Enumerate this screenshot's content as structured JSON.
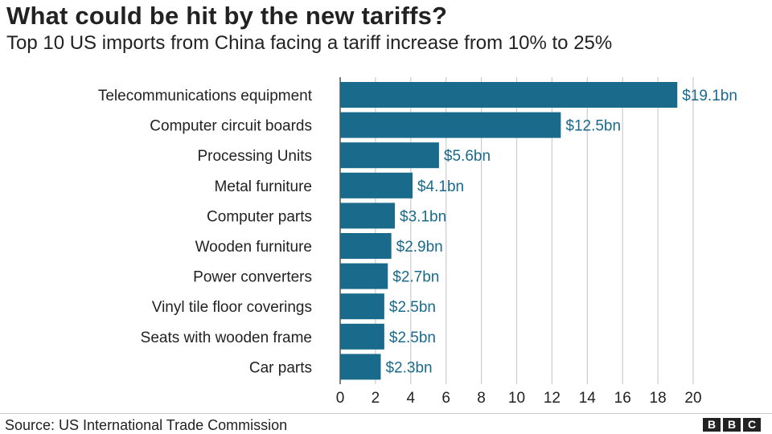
{
  "chart_data": {
    "type": "bar",
    "orientation": "horizontal",
    "title": "What could be hit by the new tariffs?",
    "subtitle": "Top 10 US imports from China facing a tariff increase from 10% to 25%",
    "categories": [
      "Telecommunications equipment",
      "Computer circuit boards",
      "Processing Units",
      "Metal furniture",
      "Computer parts",
      "Wooden furniture",
      "Power converters",
      "Vinyl tile floor coverings",
      "Seats with wooden frame",
      "Car parts"
    ],
    "values": [
      19.1,
      12.5,
      5.6,
      4.1,
      3.1,
      2.9,
      2.7,
      2.5,
      2.5,
      2.3
    ],
    "value_labels": [
      "$19.1bn",
      "$12.5bn",
      "$5.6bn",
      "$4.1bn",
      "$3.1bn",
      "$2.9bn",
      "$2.7bn",
      "$2.5bn",
      "$2.5bn",
      "$2.3bn"
    ],
    "xlim": [
      0,
      20
    ],
    "xticks": [
      0,
      2,
      4,
      6,
      8,
      10,
      12,
      14,
      16,
      18,
      20
    ],
    "grid": true,
    "bar_color": "#1a6a8c",
    "label_color": "#1a6a8c"
  },
  "source": "Source: US International Trade Commission",
  "logo": [
    "B",
    "B",
    "C"
  ]
}
